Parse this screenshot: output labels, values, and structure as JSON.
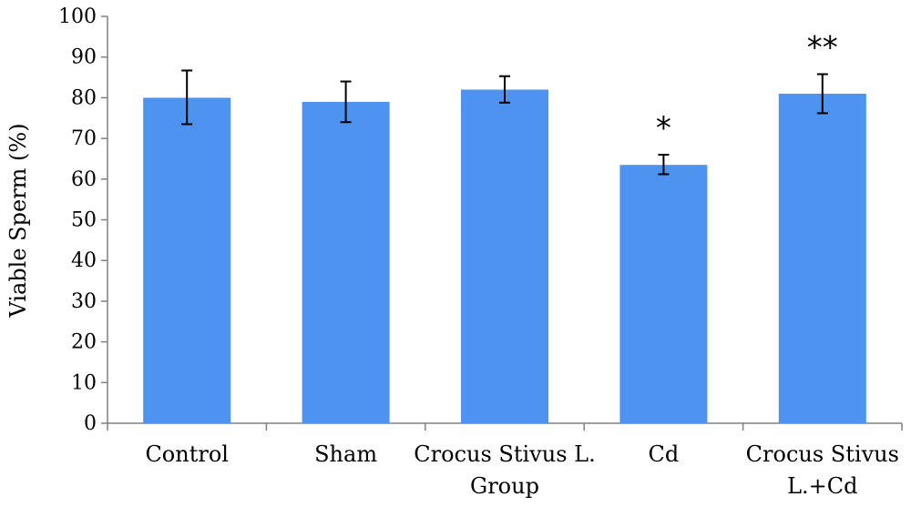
{
  "chart_data": {
    "type": "bar",
    "title": "",
    "xlabel": "",
    "ylabel": "Viable Sperm (%)",
    "ylim": [
      0,
      100
    ],
    "yticks": [
      0,
      10,
      20,
      30,
      40,
      50,
      60,
      70,
      80,
      90,
      100
    ],
    "grid": false,
    "bar_color": "#4f93f0",
    "categories": [
      [
        "Control"
      ],
      [
        "Sham"
      ],
      [
        "Crocus Stivus L.",
        "Group"
      ],
      [
        "Cd"
      ],
      [
        "Crocus Stivus",
        "L.+Cd"
      ]
    ],
    "values": [
      80,
      79,
      82,
      63.5,
      81
    ],
    "error_low": [
      73.5,
      74,
      78.8,
      61.2,
      76.2
    ],
    "error_high": [
      86.7,
      84,
      85.3,
      66,
      85.8
    ],
    "significance": [
      "",
      "",
      "",
      "*",
      "**"
    ]
  }
}
